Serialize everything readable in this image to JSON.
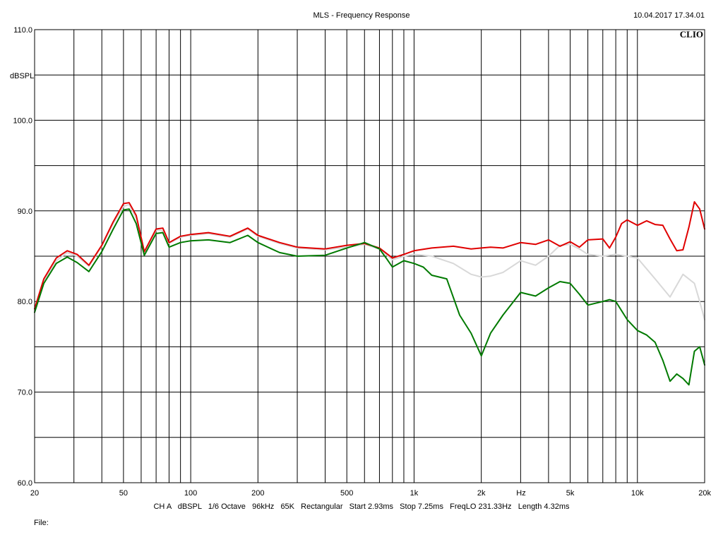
{
  "header": {
    "title": "MLS - Frequency Response",
    "timestamp": "10.04.2017 17.34.01",
    "brand": "CLIO"
  },
  "footer": {
    "settings": "CH A   dBSPL   1/6 Octave   96kHz   65K   Rectangular   Start 2.93ms   Stop 7.25ms   FreqLO 231.33Hz   Length 4.32ms",
    "file_label": "File:"
  },
  "chart_data": {
    "type": "line",
    "title": "MLS - Frequency Response",
    "xlabel": "Hz",
    "ylabel": "dBSPL",
    "x_scale": "log",
    "xlim": [
      20,
      20000
    ],
    "ylim": [
      60,
      110
    ],
    "grid": true,
    "x_ticks": [
      {
        "value": 20,
        "label": "20"
      },
      {
        "value": 50,
        "label": "50"
      },
      {
        "value": 100,
        "label": "100"
      },
      {
        "value": 200,
        "label": "200"
      },
      {
        "value": 500,
        "label": "500"
      },
      {
        "value": 1000,
        "label": "1k"
      },
      {
        "value": 2000,
        "label": "2k"
      },
      {
        "value": 5000,
        "label": "5k"
      },
      {
        "value": 10000,
        "label": "10k"
      },
      {
        "value": 20000,
        "label": "20k"
      }
    ],
    "y_ticks": [
      {
        "value": 60,
        "label": "60.0"
      },
      {
        "value": 70,
        "label": "70.0"
      },
      {
        "value": 80,
        "label": "80.0"
      },
      {
        "value": 90,
        "label": "90.0"
      },
      {
        "value": 100,
        "label": "100.0"
      },
      {
        "value": 110,
        "label": "110.0"
      }
    ],
    "series": [
      {
        "color": "#d8d8d8",
        "x": [
          20,
          22,
          25,
          28,
          31,
          35,
          40,
          45,
          50,
          53,
          57,
          62,
          70,
          75,
          80,
          90,
          100,
          120,
          150,
          180,
          200,
          250,
          300,
          400,
          500,
          600,
          700,
          800,
          900,
          1000,
          1200,
          1500,
          1800,
          2000,
          2200,
          2500,
          3000,
          3500,
          4000,
          4500,
          5000,
          5500,
          6000,
          7000,
          8000,
          9000,
          10000,
          12000,
          14000,
          16000,
          18000,
          19000,
          20000
        ],
        "y": [
          79.0,
          82.3,
          84.5,
          85.4,
          85.0,
          83.9,
          86.1,
          88.6,
          90.5,
          90.7,
          89.2,
          85.3,
          87.9,
          87.8,
          86.4,
          87.1,
          87.3,
          87.5,
          87.1,
          88.0,
          87.2,
          86.4,
          85.9,
          85.7,
          86.0,
          86.3,
          85.8,
          84.6,
          85.0,
          85.2,
          85.0,
          84.2,
          83.0,
          82.7,
          82.8,
          83.2,
          84.5,
          84.0,
          85.0,
          86.2,
          86.3,
          85.8,
          85.2,
          85.0,
          85.2,
          85.0,
          84.8,
          82.5,
          80.5,
          83.0,
          82.0,
          80.0,
          78.0
        ]
      },
      {
        "color": "#e00000",
        "x": [
          20,
          22,
          25,
          28,
          31,
          35,
          40,
          45,
          50,
          53,
          57,
          62,
          70,
          75,
          80,
          90,
          100,
          120,
          150,
          180,
          200,
          250,
          300,
          400,
          500,
          600,
          700,
          800,
          900,
          1000,
          1200,
          1500,
          1800,
          2000,
          2200,
          2500,
          3000,
          3500,
          4000,
          4500,
          5000,
          5500,
          6000,
          7000,
          7500,
          8000,
          8500,
          9000,
          10000,
          11000,
          12000,
          13000,
          14000,
          15000,
          16000,
          17000,
          18000,
          19000,
          20000
        ],
        "y": [
          79.2,
          82.5,
          84.8,
          85.6,
          85.2,
          84.0,
          86.2,
          88.8,
          90.8,
          90.9,
          89.5,
          85.5,
          88.0,
          88.1,
          86.5,
          87.2,
          87.4,
          87.6,
          87.2,
          88.1,
          87.3,
          86.5,
          86.0,
          85.8,
          86.2,
          86.4,
          85.9,
          84.8,
          85.2,
          85.6,
          85.9,
          86.1,
          85.8,
          85.9,
          86.0,
          85.9,
          86.5,
          86.3,
          86.8,
          86.1,
          86.6,
          86.0,
          86.8,
          86.9,
          85.9,
          87.1,
          88.6,
          89.0,
          88.4,
          88.9,
          88.5,
          88.4,
          86.9,
          85.6,
          85.7,
          88.2,
          91.0,
          90.2,
          88.0
        ]
      },
      {
        "color": "#007a00",
        "x": [
          20,
          22,
          25,
          28,
          31,
          35,
          40,
          45,
          50,
          53,
          57,
          62,
          70,
          75,
          80,
          90,
          100,
          120,
          150,
          180,
          200,
          250,
          300,
          400,
          500,
          600,
          700,
          750,
          800,
          900,
          1000,
          1100,
          1200,
          1400,
          1600,
          1800,
          2000,
          2200,
          2500,
          3000,
          3500,
          4000,
          4500,
          5000,
          5500,
          6000,
          7000,
          7500,
          8000,
          9000,
          10000,
          11000,
          12000,
          13000,
          14000,
          15000,
          16000,
          17000,
          18000,
          19000,
          20000
        ],
        "y": [
          78.8,
          82.0,
          84.2,
          84.9,
          84.3,
          83.3,
          85.5,
          88.0,
          90.1,
          90.2,
          88.6,
          85.1,
          87.5,
          87.6,
          86.0,
          86.5,
          86.7,
          86.8,
          86.5,
          87.3,
          86.5,
          85.4,
          85.0,
          85.1,
          85.9,
          86.5,
          85.8,
          84.8,
          83.8,
          84.5,
          84.2,
          83.8,
          82.9,
          82.5,
          78.5,
          76.5,
          74.0,
          76.5,
          78.5,
          81.0,
          80.6,
          81.5,
          82.2,
          82.0,
          80.8,
          79.6,
          80.0,
          80.2,
          80.0,
          78.0,
          76.8,
          76.3,
          75.5,
          73.5,
          71.2,
          72.0,
          71.5,
          70.8,
          74.5,
          75.0,
          73.0
        ]
      }
    ]
  }
}
